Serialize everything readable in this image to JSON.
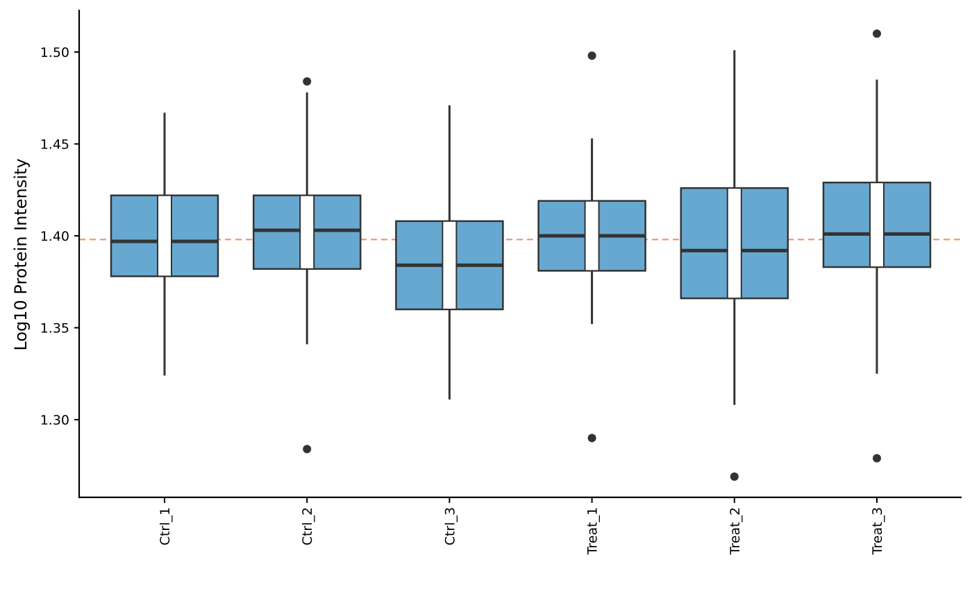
{
  "chart_data": {
    "type": "box",
    "title": "",
    "xlabel": "",
    "ylabel": "Log10 Protein Intensity",
    "ylim": [
      1.258,
      1.523
    ],
    "yticks": [
      1.3,
      1.35,
      1.4,
      1.45,
      1.5
    ],
    "ytick_labels": [
      "1.30",
      "1.35",
      "1.40",
      "1.45",
      "1.50"
    ],
    "categories": [
      "Ctrl_1",
      "Ctrl_2",
      "Ctrl_3",
      "Treat_1",
      "Treat_2",
      "Treat_3"
    ],
    "box_color": "#67a8d0",
    "edge_color": "#333333",
    "reference_line": {
      "y": 1.398,
      "color": "#f0916a",
      "style": "dashed"
    },
    "grid": false,
    "legend": "none",
    "boxes": [
      {
        "category": "Ctrl_1",
        "whisker_low": 1.324,
        "q1": 1.378,
        "median": 1.397,
        "q3": 1.422,
        "whisker_high": 1.467,
        "outliers": []
      },
      {
        "category": "Ctrl_2",
        "whisker_low": 1.341,
        "q1": 1.382,
        "median": 1.403,
        "q3": 1.422,
        "whisker_high": 1.478,
        "outliers": [
          1.484,
          1.284
        ]
      },
      {
        "category": "Ctrl_3",
        "whisker_low": 1.311,
        "q1": 1.36,
        "median": 1.384,
        "q3": 1.408,
        "whisker_high": 1.471,
        "outliers": []
      },
      {
        "category": "Treat_1",
        "whisker_low": 1.352,
        "q1": 1.381,
        "median": 1.4,
        "q3": 1.419,
        "whisker_high": 1.453,
        "outliers": [
          1.498,
          1.29
        ]
      },
      {
        "category": "Treat_2",
        "whisker_low": 1.308,
        "q1": 1.366,
        "median": 1.392,
        "q3": 1.426,
        "whisker_high": 1.501,
        "outliers": [
          1.269
        ]
      },
      {
        "category": "Treat_3",
        "whisker_low": 1.325,
        "q1": 1.383,
        "median": 1.401,
        "q3": 1.429,
        "whisker_high": 1.485,
        "outliers": [
          1.51,
          1.279
        ]
      }
    ]
  }
}
